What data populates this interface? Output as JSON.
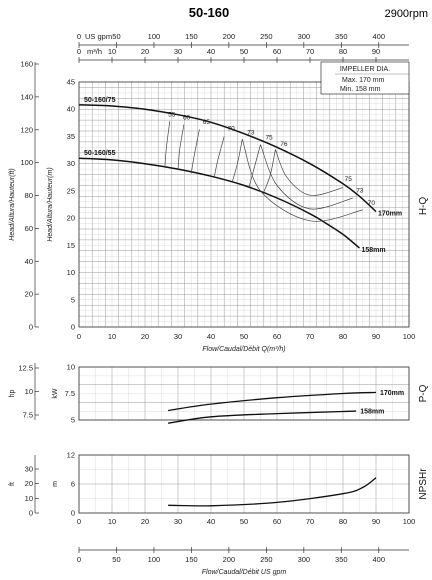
{
  "title": "50-160",
  "rpm": "2900rpm",
  "chart_data": [
    {
      "type": "line",
      "name_label": "H-Q",
      "top_axis_us": {
        "label": "US gpm",
        "ticks": [
          "0",
          "50",
          "100",
          "150",
          "200",
          "250",
          "300",
          "350",
          "400"
        ],
        "values": [
          0,
          50,
          100,
          150,
          200,
          250,
          300,
          350,
          400
        ]
      },
      "top_axis_m3h": {
        "label": "m³/h",
        "ticks": [
          "0",
          "10",
          "20",
          "30",
          "40",
          "50",
          "60",
          "70",
          "80",
          "90"
        ],
        "values": [
          0,
          10,
          20,
          30,
          40,
          50,
          60,
          70,
          80,
          90
        ]
      },
      "xlabel": "Flow/Caudal/Débit Q(m³/h)",
      "xlim": [
        0,
        100
      ],
      "xticks": [
        "0",
        "10",
        "20",
        "30",
        "40",
        "50",
        "60",
        "70",
        "80",
        "90",
        "100"
      ],
      "ylabel": "Head/Altura/Hauteur(m)",
      "ylim": [
        0,
        45
      ],
      "yticks": [
        "0",
        "5",
        "10",
        "15",
        "20",
        "25",
        "30",
        "35",
        "40",
        "45"
      ],
      "ylabel_ft": "Head/Altura/Hauteur(ft)",
      "yticks_ft": [
        "0",
        "20",
        "40",
        "60",
        "80",
        "100",
        "120",
        "140",
        "160"
      ],
      "impeller_box": {
        "title": "IMPELLER DIA.",
        "max": "Max.  170  mm",
        "min": "Min.   158 mm"
      },
      "series": [
        {
          "name": "50-160/75",
          "end_label": "170mm",
          "x": [
            0,
            10,
            20,
            30,
            40,
            50,
            60,
            70,
            80,
            85,
            90
          ],
          "y": [
            40.8,
            40.6,
            40.0,
            39.0,
            37.6,
            35.5,
            33.0,
            30.0,
            26.3,
            24.0,
            21.2
          ]
        },
        {
          "name": "50-160/55",
          "end_label": "158mm",
          "x": [
            0,
            10,
            20,
            30,
            40,
            50,
            60,
            70,
            75,
            80,
            85
          ],
          "y": [
            31.0,
            30.7,
            30.0,
            29.0,
            27.7,
            26.0,
            23.7,
            20.8,
            19.0,
            17.0,
            14.5
          ]
        }
      ],
      "efficiency_labels": [
        "55",
        "60",
        "65",
        "70",
        "73",
        "75",
        "76",
        "75",
        "73",
        "70"
      ]
    },
    {
      "type": "line",
      "name_label": "P-Q",
      "xlim": [
        0,
        100
      ],
      "ylabel": "kW",
      "ylim": [
        5,
        10
      ],
      "yticks": [
        "5",
        "7.5",
        "10"
      ],
      "ylabel_hp": "hp",
      "yticks_hp": [
        "7.5",
        "10",
        "12.5"
      ],
      "series": [
        {
          "end_label": "170mm",
          "x": [
            27,
            40,
            60,
            80,
            90
          ],
          "y": [
            5.9,
            6.5,
            7.1,
            7.5,
            7.6
          ]
        },
        {
          "end_label": "158mm",
          "x": [
            27,
            40,
            60,
            80,
            84
          ],
          "y": [
            4.7,
            5.3,
            5.6,
            5.8,
            5.85
          ]
        }
      ]
    },
    {
      "type": "line",
      "name_label": "NPSHr",
      "xlim": [
        0,
        100
      ],
      "xlabel": "Flow/Caudal/Débit  US gpm",
      "xticks_us": [
        "0",
        "50",
        "100",
        "150",
        "200",
        "250",
        "300",
        "350",
        "400"
      ],
      "ylabel": "m",
      "ylim": [
        0,
        12
      ],
      "yticks": [
        "0",
        "6",
        "12"
      ],
      "ylabel_ft": "ft",
      "yticks_ft": [
        "0",
        "10",
        "20",
        "30"
      ],
      "series": [
        {
          "x": [
            27,
            40,
            60,
            80,
            86,
            90
          ],
          "y": [
            1.6,
            1.5,
            2.2,
            4.0,
            5.3,
            7.3
          ]
        }
      ]
    }
  ]
}
